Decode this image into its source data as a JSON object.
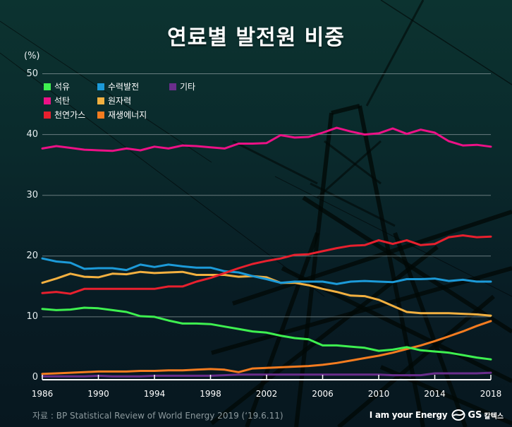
{
  "title": "연료별 발전원 비중",
  "y_unit_label": "(%)",
  "source": "자료 : BP Statistical Review of World Energy 2019 (‘19.6.11)",
  "brand": {
    "slogan": "I am your Energy",
    "logo_text": "GS",
    "logo_sub": "칼텍스"
  },
  "legend": [
    {
      "label": "석유",
      "color": "#3ef050"
    },
    {
      "label": "수력발전",
      "color": "#1c9ad8"
    },
    {
      "label": "기타",
      "color": "#6a2e8c"
    },
    {
      "label": "석탄",
      "color": "#ec1186"
    },
    {
      "label": "원자력",
      "color": "#f2b040"
    },
    {
      "label": "천연가스",
      "color": "#e8202e"
    },
    {
      "label": "재생에너지",
      "color": "#f47c20"
    }
  ],
  "y_ticks": [
    "50",
    "40",
    "30",
    "20",
    "10",
    "0"
  ],
  "x_ticks": [
    "1986",
    "1990",
    "1994",
    "1998",
    "2002",
    "2006",
    "2010",
    "2014",
    "2018"
  ],
  "chart_data": {
    "type": "line",
    "title": "연료별 발전원 비중",
    "xlabel": "",
    "ylabel": "(%)",
    "ylim": [
      0,
      50
    ],
    "xlim": [
      1986,
      2018
    ],
    "grid": true,
    "legend_position": "top-left",
    "x": [
      1986,
      1987,
      1988,
      1989,
      1990,
      1991,
      1992,
      1993,
      1994,
      1995,
      1996,
      1997,
      1998,
      1999,
      2000,
      2001,
      2002,
      2003,
      2004,
      2005,
      2006,
      2007,
      2008,
      2009,
      2010,
      2011,
      2012,
      2013,
      2014,
      2015,
      2016,
      2017,
      2018
    ],
    "series": [
      {
        "name": "석유",
        "color": "#3ef050",
        "values": [
          11.3,
          11.1,
          11.2,
          11.5,
          11.4,
          11.1,
          10.8,
          10.1,
          10.0,
          9.4,
          8.9,
          8.9,
          8.8,
          8.4,
          8.0,
          7.6,
          7.4,
          6.9,
          6.5,
          6.3,
          5.3,
          5.3,
          5.1,
          4.9,
          4.4,
          4.6,
          5.0,
          4.5,
          4.3,
          4.1,
          3.7,
          3.3,
          3.0
        ]
      },
      {
        "name": "석탄",
        "color": "#ec1186",
        "values": [
          37.7,
          38.1,
          37.8,
          37.5,
          37.4,
          37.3,
          37.7,
          37.4,
          38.0,
          37.7,
          38.2,
          38.1,
          37.9,
          37.7,
          38.5,
          38.5,
          38.6,
          39.9,
          39.5,
          39.6,
          40.3,
          41.1,
          40.5,
          40.0,
          40.2,
          41.0,
          40.1,
          40.8,
          40.3,
          38.9,
          38.2,
          38.3,
          38.0
        ]
      },
      {
        "name": "천연가스",
        "color": "#e8202e",
        "values": [
          13.9,
          14.1,
          13.8,
          14.6,
          14.6,
          14.6,
          14.6,
          14.6,
          14.6,
          15.0,
          15.0,
          15.8,
          16.4,
          17.2,
          18.0,
          18.7,
          19.2,
          19.6,
          20.2,
          20.3,
          20.8,
          21.3,
          21.7,
          21.8,
          22.6,
          22.0,
          22.6,
          21.8,
          22.0,
          23.1,
          23.4,
          23.1,
          23.2
        ]
      },
      {
        "name": "수력발전",
        "color": "#1c9ad8",
        "values": [
          19.6,
          19.1,
          18.9,
          17.9,
          18.0,
          18.0,
          17.7,
          18.6,
          18.2,
          18.6,
          18.3,
          18.1,
          18.1,
          17.5,
          17.3,
          16.7,
          16.2,
          15.6,
          15.8,
          15.8,
          15.8,
          15.4,
          15.8,
          15.9,
          15.8,
          15.7,
          16.2,
          16.2,
          16.3,
          15.9,
          16.1,
          15.8,
          15.8
        ]
      },
      {
        "name": "원자력",
        "color": "#f2b040",
        "values": [
          15.6,
          16.3,
          17.1,
          16.6,
          16.5,
          17.1,
          17.0,
          17.4,
          17.2,
          17.3,
          17.4,
          16.9,
          16.9,
          16.9,
          16.6,
          16.7,
          16.5,
          15.6,
          15.6,
          15.2,
          14.6,
          14.1,
          13.5,
          13.4,
          12.8,
          11.8,
          10.8,
          10.6,
          10.6,
          10.6,
          10.5,
          10.4,
          10.2
        ]
      },
      {
        "name": "재생에너지",
        "color": "#f47c20",
        "values": [
          0.6,
          0.7,
          0.8,
          0.9,
          1.0,
          1.0,
          1.0,
          1.1,
          1.1,
          1.2,
          1.2,
          1.3,
          1.4,
          1.3,
          0.9,
          1.5,
          1.6,
          1.7,
          1.8,
          1.9,
          2.1,
          2.4,
          2.8,
          3.2,
          3.6,
          4.1,
          4.7,
          5.3,
          6.0,
          6.8,
          7.6,
          8.5,
          9.3
        ]
      },
      {
        "name": "기타",
        "color": "#6a2e8c",
        "values": [
          0.2,
          0.2,
          0.2,
          0.2,
          0.3,
          0.2,
          0.2,
          0.2,
          0.3,
          0.3,
          0.3,
          0.3,
          0.3,
          0.4,
          0.5,
          0.5,
          0.5,
          0.5,
          0.5,
          0.5,
          0.5,
          0.5,
          0.5,
          0.5,
          0.5,
          0.4,
          0.4,
          0.4,
          0.7,
          0.7,
          0.7,
          0.7,
          0.8
        ]
      }
    ]
  }
}
